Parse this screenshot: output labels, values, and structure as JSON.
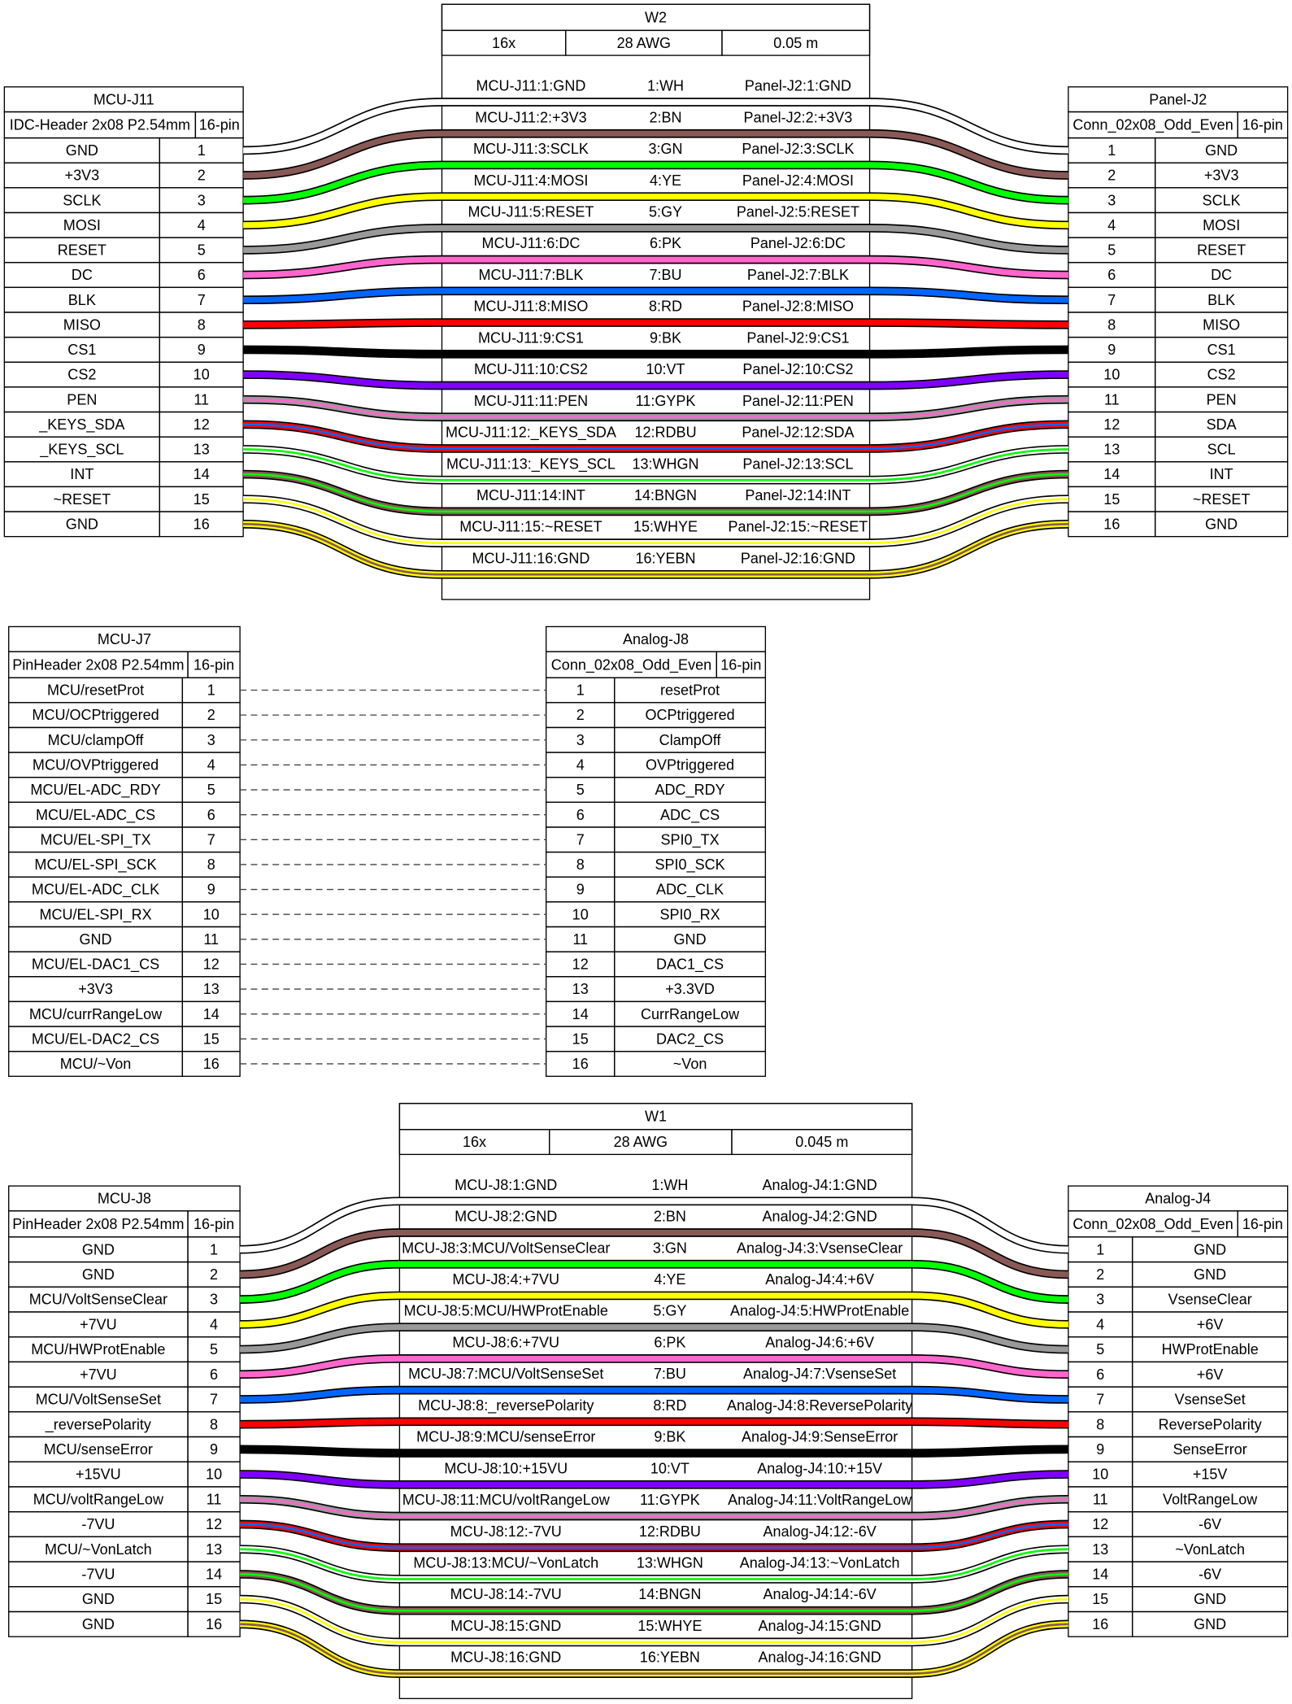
{
  "sections": [
    {
      "left": {
        "title": "MCU-J11",
        "type": "IDC-Header 2x08 P2.54mm",
        "pincount": "16-pin",
        "pin_labels": [
          "GND",
          "+3V3",
          "SCLK",
          "MOSI",
          "RESET",
          "DC",
          "BLK",
          "MISO",
          "CS1",
          "CS2",
          "PEN",
          "_KEYS_SDA",
          "_KEYS_SCL",
          "INT",
          "~RESET",
          "GND"
        ],
        "pin_numbers": [
          1,
          2,
          3,
          4,
          5,
          6,
          7,
          8,
          9,
          10,
          11,
          12,
          13,
          14,
          15,
          16
        ]
      },
      "cable": {
        "title": "W2",
        "count": "16x",
        "gauge": "28 AWG",
        "length": "0.05 m",
        "wires": [
          {
            "from": "MCU-J11:1:GND",
            "code": "1:WH",
            "to": "Panel-J2:1:GND"
          },
          {
            "from": "MCU-J11:2:+3V3",
            "code": "2:BN",
            "to": "Panel-J2:2:+3V3"
          },
          {
            "from": "MCU-J11:3:SCLK",
            "code": "3:GN",
            "to": "Panel-J2:3:SCLK"
          },
          {
            "from": "MCU-J11:4:MOSI",
            "code": "4:YE",
            "to": "Panel-J2:4:MOSI"
          },
          {
            "from": "MCU-J11:5:RESET",
            "code": "5:GY",
            "to": "Panel-J2:5:RESET"
          },
          {
            "from": "MCU-J11:6:DC",
            "code": "6:PK",
            "to": "Panel-J2:6:DC"
          },
          {
            "from": "MCU-J11:7:BLK",
            "code": "7:BU",
            "to": "Panel-J2:7:BLK"
          },
          {
            "from": "MCU-J11:8:MISO",
            "code": "8:RD",
            "to": "Panel-J2:8:MISO"
          },
          {
            "from": "MCU-J11:9:CS1",
            "code": "9:BK",
            "to": "Panel-J2:9:CS1"
          },
          {
            "from": "MCU-J11:10:CS2",
            "code": "10:VT",
            "to": "Panel-J2:10:CS2"
          },
          {
            "from": "MCU-J11:11:PEN",
            "code": "11:GYPK",
            "to": "Panel-J2:11:PEN"
          },
          {
            "from": "MCU-J11:12:_KEYS_SDA",
            "code": "12:RDBU",
            "to": "Panel-J2:12:SDA"
          },
          {
            "from": "MCU-J11:13:_KEYS_SCL",
            "code": "13:WHGN",
            "to": "Panel-J2:13:SCL"
          },
          {
            "from": "MCU-J11:14:INT",
            "code": "14:BNGN",
            "to": "Panel-J2:14:INT"
          },
          {
            "from": "MCU-J11:15:~RESET",
            "code": "15:WHYE",
            "to": "Panel-J2:15:~RESET"
          },
          {
            "from": "MCU-J11:16:GND",
            "code": "16:YEBN",
            "to": "Panel-J2:16:GND"
          }
        ],
        "wire_colors": [
          [
            "#ffffff"
          ],
          [
            "#895956"
          ],
          [
            "#00ff00"
          ],
          [
            "#ffff00"
          ],
          [
            "#999999"
          ],
          [
            "#ff66cc"
          ],
          [
            "#0066ff"
          ],
          [
            "#ff0000"
          ],
          [
            "#000000"
          ],
          [
            "#8000ff"
          ],
          [
            "#999999",
            "#ff66cc"
          ],
          [
            "#ff0000",
            "#0066ff"
          ],
          [
            "#ffffff",
            "#00ff00"
          ],
          [
            "#895956",
            "#00ff00"
          ],
          [
            "#ffffff",
            "#ffff00"
          ],
          [
            "#ffff00",
            "#895956"
          ]
        ]
      },
      "right": {
        "title": "Panel-J2",
        "type": "Conn_02x08_Odd_Even",
        "pincount": "16-pin",
        "pin_labels": [
          "GND",
          "+3V3",
          "SCLK",
          "MOSI",
          "RESET",
          "DC",
          "BLK",
          "MISO",
          "CS1",
          "CS2",
          "PEN",
          "SDA",
          "SCL",
          "INT",
          "~RESET",
          "GND"
        ],
        "pin_numbers": [
          1,
          2,
          3,
          4,
          5,
          6,
          7,
          8,
          9,
          10,
          11,
          12,
          13,
          14,
          15,
          16
        ]
      }
    },
    {
      "left": {
        "title": "MCU-J7",
        "type": "PinHeader 2x08 P2.54mm",
        "pincount": "16-pin",
        "pin_labels": [
          "MCU/resetProt",
          "MCU/OCPtriggered",
          "MCU/clampOff",
          "MCU/OVPtriggered",
          "MCU/EL-ADC_RDY",
          "MCU/EL-ADC_CS",
          "MCU/EL-SPI_TX",
          "MCU/EL-SPI_SCK",
          "MCU/EL-ADC_CLK",
          "MCU/EL-SPI_RX",
          "GND",
          "MCU/EL-DAC1_CS",
          "+3V3",
          "MCU/currRangeLow",
          "MCU/EL-DAC2_CS",
          "MCU/~Von"
        ],
        "pin_numbers": [
          1,
          2,
          3,
          4,
          5,
          6,
          7,
          8,
          9,
          10,
          11,
          12,
          13,
          14,
          15,
          16
        ]
      },
      "right": {
        "title": "Analog-J8",
        "type": "Conn_02x08_Odd_Even",
        "pincount": "16-pin",
        "pin_labels": [
          "resetProt",
          "OCPtriggered",
          "ClampOff",
          "OVPtriggered",
          "ADC_RDY",
          "ADC_CS",
          "SPI0_TX",
          "SPI0_SCK",
          "ADC_CLK",
          "SPI0_RX",
          "GND",
          "DAC1_CS",
          "+3.3VD",
          "CurrRangeLow",
          "DAC2_CS",
          "~Von"
        ],
        "pin_numbers": [
          1,
          2,
          3,
          4,
          5,
          6,
          7,
          8,
          9,
          10,
          11,
          12,
          13,
          14,
          15,
          16
        ]
      }
    },
    {
      "left": {
        "title": "MCU-J8",
        "type": "PinHeader 2x08 P2.54mm",
        "pincount": "16-pin",
        "pin_labels": [
          "GND",
          "GND",
          "MCU/VoltSenseClear",
          "+7VU",
          "MCU/HWProtEnable",
          "+7VU",
          "MCU/VoltSenseSet",
          "_reversePolarity",
          "MCU/senseError",
          "+15VU",
          "MCU/voltRangeLow",
          "-7VU",
          "MCU/~VonLatch",
          "-7VU",
          "GND",
          "GND"
        ],
        "pin_numbers": [
          1,
          2,
          3,
          4,
          5,
          6,
          7,
          8,
          9,
          10,
          11,
          12,
          13,
          14,
          15,
          16
        ]
      },
      "cable": {
        "title": "W1",
        "count": "16x",
        "gauge": "28 AWG",
        "length": "0.045 m",
        "wires": [
          {
            "from": "MCU-J8:1:GND",
            "code": "1:WH",
            "to": "Analog-J4:1:GND"
          },
          {
            "from": "MCU-J8:2:GND",
            "code": "2:BN",
            "to": "Analog-J4:2:GND"
          },
          {
            "from": "MCU-J8:3:MCU/VoltSenseClear",
            "code": "3:GN",
            "to": "Analog-J4:3:VsenseClear"
          },
          {
            "from": "MCU-J8:4:+7VU",
            "code": "4:YE",
            "to": "Analog-J4:4:+6V"
          },
          {
            "from": "MCU-J8:5:MCU/HWProtEnable",
            "code": "5:GY",
            "to": "Analog-J4:5:HWProtEnable"
          },
          {
            "from": "MCU-J8:6:+7VU",
            "code": "6:PK",
            "to": "Analog-J4:6:+6V"
          },
          {
            "from": "MCU-J8:7:MCU/VoltSenseSet",
            "code": "7:BU",
            "to": "Analog-J4:7:VsenseSet"
          },
          {
            "from": "MCU-J8:8:_reversePolarity",
            "code": "8:RD",
            "to": "Analog-J4:8:ReversePolarity"
          },
          {
            "from": "MCU-J8:9:MCU/senseError",
            "code": "9:BK",
            "to": "Analog-J4:9:SenseError"
          },
          {
            "from": "MCU-J8:10:+15VU",
            "code": "10:VT",
            "to": "Analog-J4:10:+15V"
          },
          {
            "from": "MCU-J8:11:MCU/voltRangeLow",
            "code": "11:GYPK",
            "to": "Analog-J4:11:VoltRangeLow"
          },
          {
            "from": "MCU-J8:12:-7VU",
            "code": "12:RDBU",
            "to": "Analog-J4:12:-6V"
          },
          {
            "from": "MCU-J8:13:MCU/~VonLatch",
            "code": "13:WHGN",
            "to": "Analog-J4:13:~VonLatch"
          },
          {
            "from": "MCU-J8:14:-7VU",
            "code": "14:BNGN",
            "to": "Analog-J4:14:-6V"
          },
          {
            "from": "MCU-J8:15:GND",
            "code": "15:WHYE",
            "to": "Analog-J4:15:GND"
          },
          {
            "from": "MCU-J8:16:GND",
            "code": "16:YEBN",
            "to": "Analog-J4:16:GND"
          }
        ],
        "wire_colors": [
          [
            "#ffffff"
          ],
          [
            "#895956"
          ],
          [
            "#00ff00"
          ],
          [
            "#ffff00"
          ],
          [
            "#999999"
          ],
          [
            "#ff66cc"
          ],
          [
            "#0066ff"
          ],
          [
            "#ff0000"
          ],
          [
            "#000000"
          ],
          [
            "#8000ff"
          ],
          [
            "#999999",
            "#ff66cc"
          ],
          [
            "#ff0000",
            "#0066ff"
          ],
          [
            "#ffffff",
            "#00ff00"
          ],
          [
            "#895956",
            "#00ff00"
          ],
          [
            "#ffffff",
            "#ffff00"
          ],
          [
            "#ffff00",
            "#895956"
          ]
        ]
      },
      "right": {
        "title": "Analog-J4",
        "type": "Conn_02x08_Odd_Even",
        "pincount": "16-pin",
        "pin_labels": [
          "GND",
          "GND",
          "VsenseClear",
          "+6V",
          "HWProtEnable",
          "+6V",
          "VsenseSet",
          "ReversePolarity",
          "SenseError",
          "+15V",
          "VoltRangeLow",
          "-6V",
          "~VonLatch",
          "-6V",
          "GND",
          "GND"
        ],
        "pin_numbers": [
          1,
          2,
          3,
          4,
          5,
          6,
          7,
          8,
          9,
          10,
          11,
          12,
          13,
          14,
          15,
          16
        ]
      }
    }
  ]
}
